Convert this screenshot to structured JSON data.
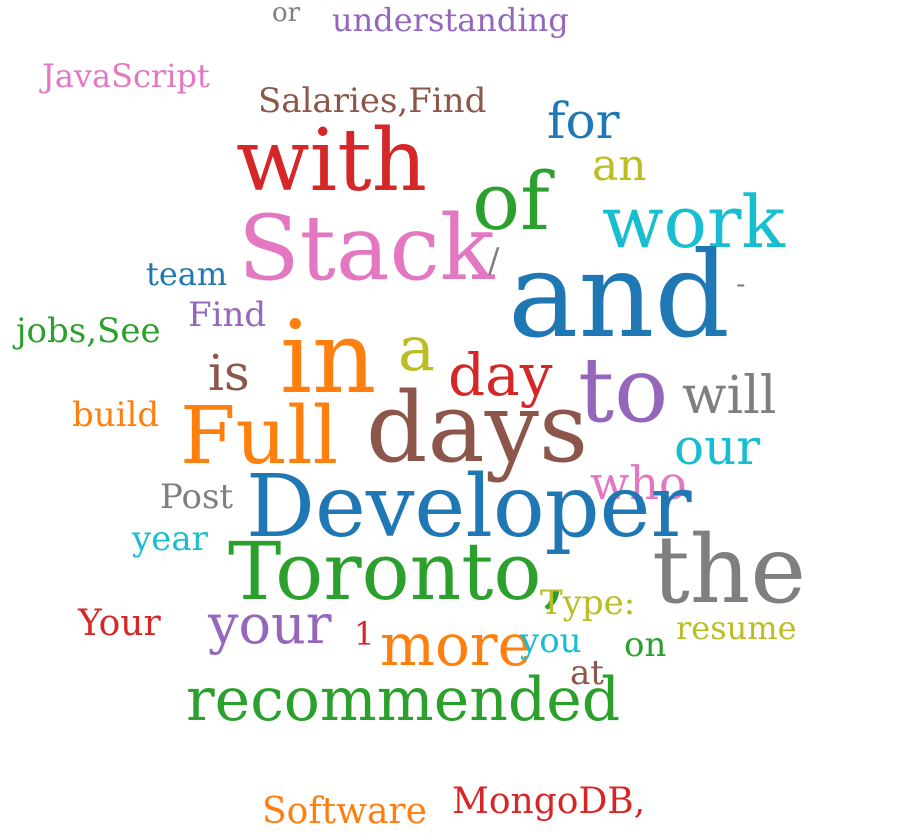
{
  "words": [
    {
      "text": "or",
      "color": "#7f7f7f"
    },
    {
      "text": "understanding",
      "color": "#9467bd"
    },
    {
      "text": "JavaScript",
      "color": "#e377c2"
    },
    {
      "text": "Salaries,Find",
      "color": "#8c564b"
    },
    {
      "text": "for",
      "color": "#1f77b4"
    },
    {
      "text": "with",
      "color": "#d62728"
    },
    {
      "text": "an",
      "color": "#bcbd22"
    },
    {
      "text": "of",
      "color": "#2ca02c"
    },
    {
      "text": "work",
      "color": "#17becf"
    },
    {
      "text": "Stack",
      "color": "#e377c2"
    },
    {
      "text": "/",
      "color": "#7f7f7f"
    },
    {
      "text": "and",
      "color": "#1f77b4"
    },
    {
      "text": "-",
      "color": "#7f7f7f"
    },
    {
      "text": "team",
      "color": "#1f77b4"
    },
    {
      "text": "Find",
      "color": "#9467bd"
    },
    {
      "text": "jobs,See",
      "color": "#2ca02c"
    },
    {
      "text": "in",
      "color": "#ff7f0e"
    },
    {
      "text": "a",
      "color": "#bcbd22"
    },
    {
      "text": "is",
      "color": "#8c564b"
    },
    {
      "text": "day",
      "color": "#d62728"
    },
    {
      "text": "to",
      "color": "#9467bd"
    },
    {
      "text": "will",
      "color": "#7f7f7f"
    },
    {
      "text": "build",
      "color": "#ff7f0e"
    },
    {
      "text": "Full",
      "color": "#ff7f0e"
    },
    {
      "text": "days",
      "color": "#8c564b"
    },
    {
      "text": "our",
      "color": "#17becf"
    },
    {
      "text": "who",
      "color": "#e377c2"
    },
    {
      "text": "Post",
      "color": "#7f7f7f"
    },
    {
      "text": "Developer",
      "color": "#1f77b4"
    },
    {
      "text": "year",
      "color": "#17becf"
    },
    {
      "text": "the",
      "color": "#7f7f7f"
    },
    {
      "text": "Toronto,",
      "color": "#2ca02c"
    },
    {
      "text": "Type:",
      "color": "#bcbd22"
    },
    {
      "text": "Your",
      "color": "#d62728"
    },
    {
      "text": "your",
      "color": "#9467bd"
    },
    {
      "text": "1",
      "color": "#d62728"
    },
    {
      "text": "more",
      "color": "#ff7f0e"
    },
    {
      "text": "you",
      "color": "#17becf"
    },
    {
      "text": "on",
      "color": "#2ca02c"
    },
    {
      "text": "resume",
      "color": "#bcbd22"
    },
    {
      "text": "at",
      "color": "#8c564b"
    },
    {
      "text": "recommended",
      "color": "#2ca02c"
    },
    {
      "text": "Software",
      "color": "#ff7f0e"
    },
    {
      "text": "MongoDB,",
      "color": "#d62728"
    }
  ]
}
